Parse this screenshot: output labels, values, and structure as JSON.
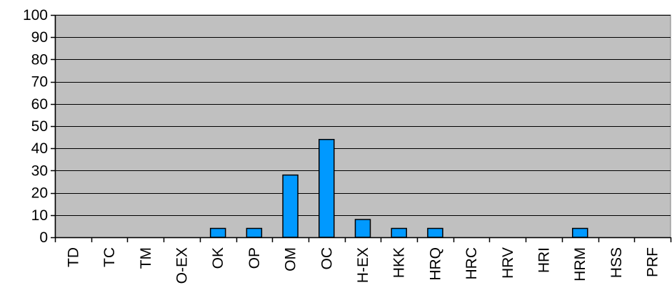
{
  "chart_data": {
    "type": "bar",
    "title": "",
    "xlabel": "",
    "ylabel": "",
    "ylim": [
      0,
      100
    ],
    "yticks": [
      0,
      10,
      20,
      30,
      40,
      50,
      60,
      70,
      80,
      90,
      100
    ],
    "grid": true,
    "legend": "none",
    "categories": [
      "TD",
      "TC",
      "TM",
      "O-EX",
      "OK",
      "OP",
      "OM",
      "OC",
      "H-EX",
      "HKK",
      "HRQ",
      "HRC",
      "HRV",
      "HRI",
      "HRM",
      "HSS",
      "PRF"
    ],
    "values": [
      0,
      0,
      0,
      0,
      4,
      4,
      28,
      44,
      8,
      4,
      4,
      0,
      0,
      0,
      4,
      0,
      0
    ],
    "colors": {
      "plot_background": "#c0c0c0",
      "bar_fill": "#0099ff",
      "bar_stroke": "#000000",
      "gridline": "#000000"
    }
  }
}
